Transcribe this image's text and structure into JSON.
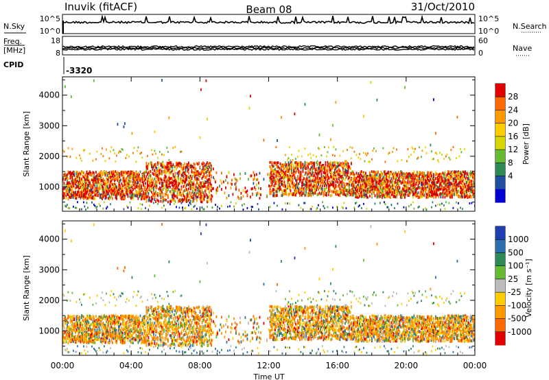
{
  "header": {
    "station": "Inuvik (fitACF)",
    "beam": "Beam 08",
    "date": "31/Oct/2010"
  },
  "strip": {
    "nsky_label": "N.Sky",
    "nsearch_label": "N.Search",
    "freq_label_1": "Freq.",
    "freq_label_2": "[MHz]",
    "nave_label": "Nave",
    "cpid_label": "CPID",
    "cpid_value": "-3320",
    "noise_ticks": [
      "10^5",
      "10^0"
    ],
    "freq_ticks": [
      "18",
      "8"
    ],
    "nave_ticks": [
      "60",
      "0"
    ]
  },
  "chart_data": [
    {
      "type": "heatmap",
      "panel": "power",
      "ylabel": "Slant Range [km]",
      "xlabel": "",
      "ylim": [
        200,
        4600
      ],
      "y_ticks": [
        "4000",
        "3000",
        "2000",
        "1000"
      ],
      "colorbar": {
        "label": "Power [dB]",
        "ticks": [
          "28",
          "24",
          "20",
          "16",
          "12",
          "8",
          "4"
        ],
        "colors": [
          "#e00000",
          "#ff6a00",
          "#ff9a00",
          "#ffcc00",
          "#d7d700",
          "#66bb33",
          "#2e8b57",
          "#1f4fa0",
          "#0000d0"
        ]
      }
    },
    {
      "type": "heatmap",
      "panel": "velocity",
      "ylabel": "Slant Range [km]",
      "xlabel": "Time UT",
      "ylim": [
        200,
        4600
      ],
      "x_ticks": [
        "00:00",
        "04:00",
        "08:00",
        "12:00",
        "16:00",
        "20:00",
        "00:00"
      ],
      "y_ticks": [
        "4000",
        "3000",
        "2000",
        "1000"
      ],
      "colorbar": {
        "label": "Velocity [m s⁻¹]",
        "ticks": [
          "1000",
          "500",
          "100",
          "25",
          "-25",
          "-100",
          "-500",
          "-1000"
        ],
        "colors": [
          "#1f3fb0",
          "#2e6fb0",
          "#2e8b57",
          "#66bb33",
          "#bbbbbb",
          "#ffcc00",
          "#ff9a00",
          "#ff6a00",
          "#e00000"
        ]
      }
    }
  ]
}
